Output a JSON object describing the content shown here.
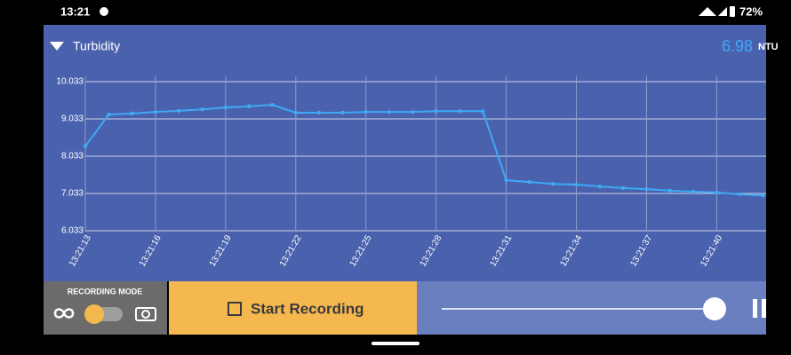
{
  "status_bar": {
    "time": "13:21",
    "battery": "72%"
  },
  "sensor": {
    "name": "Turbidity",
    "reading": "6.98",
    "unit": "NTU"
  },
  "chart_data": {
    "type": "line",
    "x": [
      "13:21:13",
      "13:21:14",
      "13:21:15",
      "13:21:16",
      "13:21:17",
      "13:21:18",
      "13:21:19",
      "13:21:20",
      "13:21:21",
      "13:21:22",
      "13:21:23",
      "13:21:24",
      "13:21:25",
      "13:21:26",
      "13:21:27",
      "13:21:28",
      "13:21:29",
      "13:21:30",
      "13:21:31",
      "13:21:32",
      "13:21:33",
      "13:21:34",
      "13:21:35",
      "13:21:36",
      "13:21:37",
      "13:21:38",
      "13:21:39",
      "13:21:40",
      "13:21:41",
      "13:21:42"
    ],
    "series": [
      {
        "name": "Turbidity",
        "color": "#3fa9f5",
        "values": [
          8.3,
          9.15,
          9.18,
          9.22,
          9.25,
          9.29,
          9.34,
          9.37,
          9.41,
          9.2,
          9.2,
          9.2,
          9.22,
          9.22,
          9.22,
          9.24,
          9.24,
          9.24,
          7.39,
          7.34,
          7.29,
          7.27,
          7.22,
          7.18,
          7.15,
          7.11,
          7.08,
          7.06,
          7.01,
          6.98
        ]
      }
    ],
    "xlim": [
      "13:21:13",
      "13:21:42"
    ],
    "xticks": [
      "13:21:13",
      "13:21:16",
      "13:21:19",
      "13:21:22",
      "13:21:25",
      "13:21:28",
      "13:21:31",
      "13:21:34",
      "13:21:37",
      "13:21:40"
    ],
    "ylim": [
      6.033,
      10.033
    ],
    "yticks": [
      6.033,
      7.033,
      8.033,
      9.033,
      10.033
    ],
    "grid": true
  },
  "controls": {
    "recording_mode_label": "RECORDING MODE",
    "start_button": "Start Recording"
  }
}
